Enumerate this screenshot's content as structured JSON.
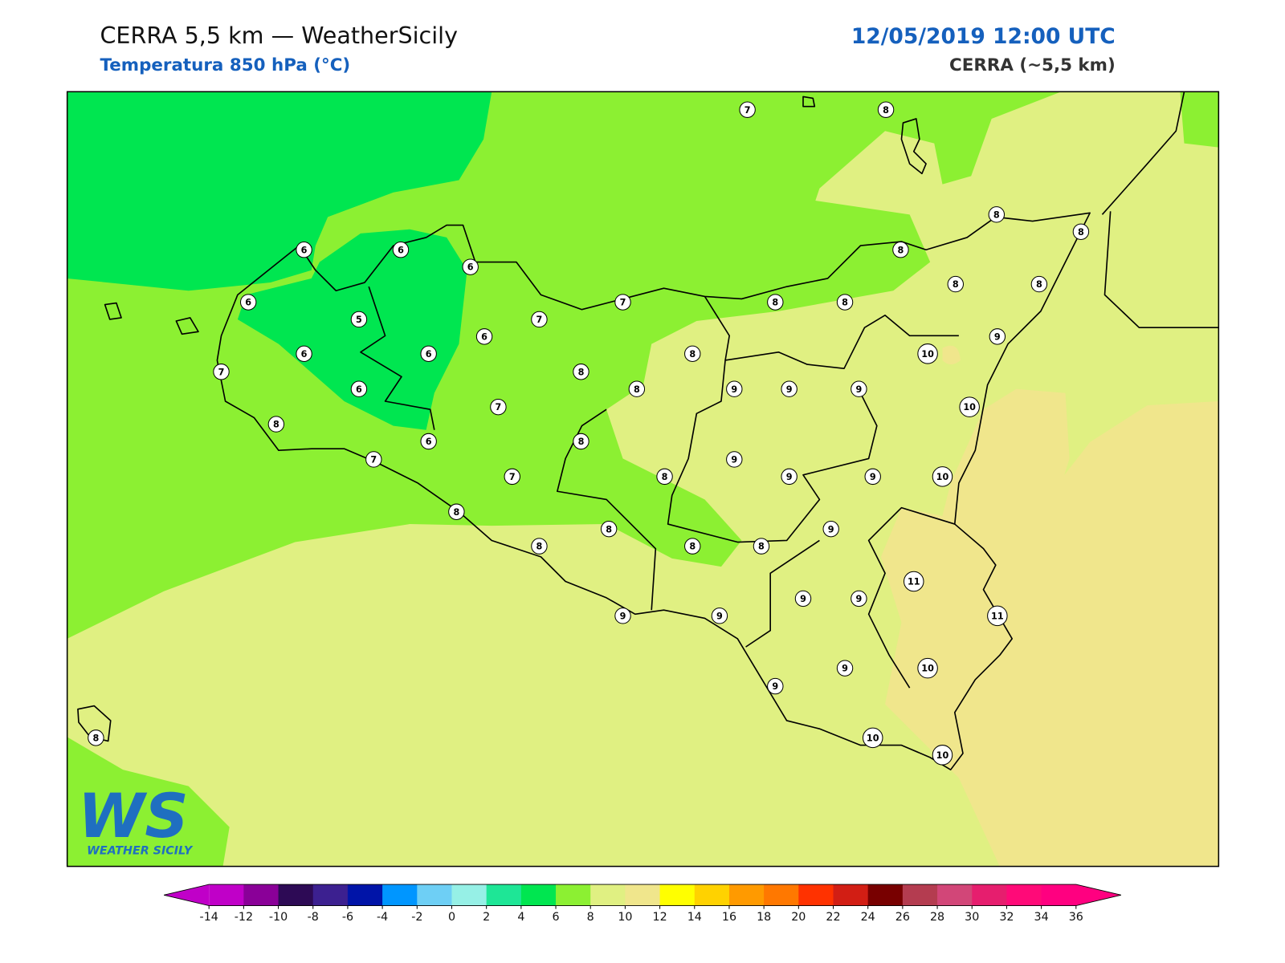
{
  "header": {
    "title": "CERRA 5,5 km — WeatherSicily",
    "subtitle": "Temperatura 850 hPa (°C)",
    "datetime": "12/05/2019 12:00 UTC",
    "model": "CERRA (~5,5 km)"
  },
  "map": {
    "station_values": [
      7,
      8,
      8,
      8,
      6,
      6,
      6,
      8,
      6,
      7,
      8,
      8,
      8,
      8,
      5,
      7,
      6,
      9,
      6,
      6,
      8,
      10,
      7,
      8,
      6,
      8,
      9,
      9,
      9,
      7,
      10,
      8,
      6,
      8,
      7,
      9,
      7,
      8,
      9,
      9,
      10,
      8,
      8,
      9,
      8,
      8,
      8,
      11,
      9,
      9,
      9,
      9,
      11,
      9,
      10,
      9,
      10,
      10,
      8
    ]
  },
  "colorbar": {
    "ticks": [
      -14,
      -12,
      -10,
      -8,
      -6,
      -4,
      -2,
      0,
      2,
      4,
      6,
      8,
      10,
      12,
      14,
      16,
      18,
      20,
      22,
      24,
      26,
      28,
      30,
      32,
      34,
      36
    ],
    "colors": [
      "#c000c8",
      "#8a0098",
      "#2d0a55",
      "#3c2090",
      "#0014a8",
      "#0096ff",
      "#6ecff5",
      "#96f0e6",
      "#1ee696",
      "#00e650",
      "#8cf032",
      "#e0f082",
      "#f0e68c",
      "#ffff00",
      "#ffd200",
      "#ff9a00",
      "#ff7800",
      "#ff3200",
      "#d21e14",
      "#780000",
      "#b43c50",
      "#d24678",
      "#e61e6e",
      "#ff0a78",
      "#ff0080"
    ]
  },
  "logo": {
    "mark": "WS",
    "name": "WEATHER SICILY"
  }
}
